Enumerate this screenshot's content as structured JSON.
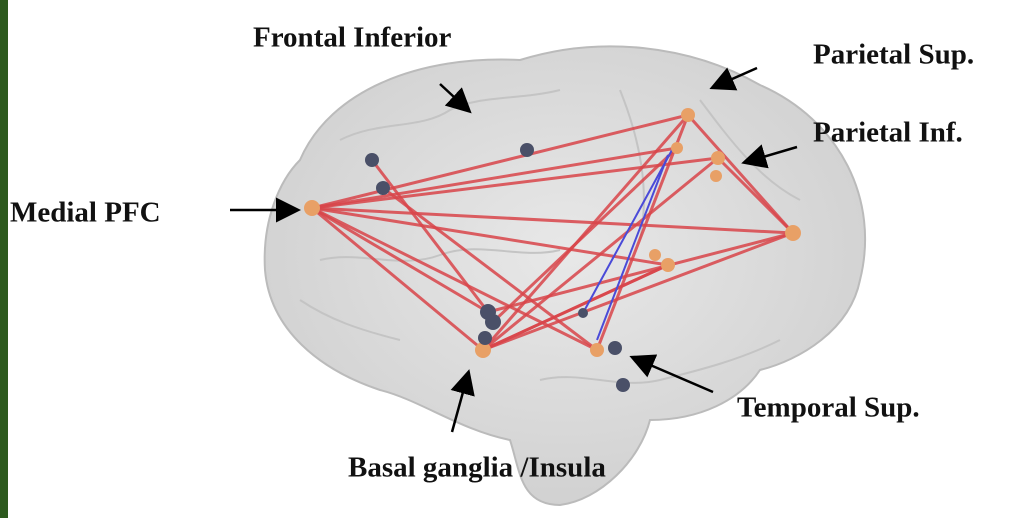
{
  "labels": {
    "frontal_inferior": "Frontal Inferior",
    "parietal_sup": "Parietal Sup.",
    "parietal_inf": "Parietal Inf.",
    "medial_pfc": "Medial PFC",
    "temporal_sup": "Temporal Sup.",
    "basal_ganglia": "Basal ganglia /Insula"
  }
}
